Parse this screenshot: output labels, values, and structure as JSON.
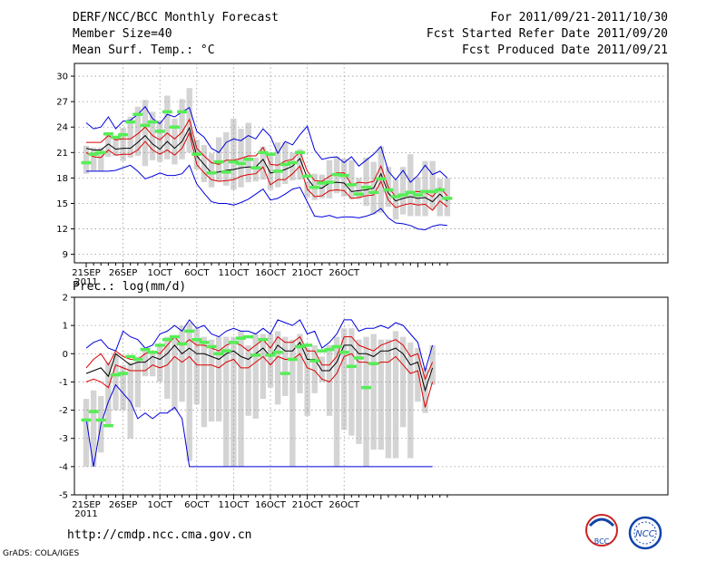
{
  "header": {
    "title": "DERF/NCC/BCC Monthly Forecast",
    "member": "Member Size=40",
    "variable": "Mean Surf. Temp.: °C",
    "period": "For 2011/09/21-2011/10/30",
    "started": "Fcst Started Refer Date 2011/09/20",
    "produced": "Fcst Produced Date 2011/09/21"
  },
  "footer": {
    "url": "http://cmdp.ncc.cma.gov.cn",
    "grads": "GrADS: COLA/IGES",
    "logo_bcc": "BCC",
    "logo_ncc": "NCC"
  },
  "colors": {
    "max": "#0000dd",
    "min": "#0000dd",
    "upper": "#dd0000",
    "lower": "#dd0000",
    "mean": "#000000",
    "obs": "#55ee55",
    "box": "#d4d4d4",
    "grid": "#999999"
  },
  "chart_data": [
    {
      "type": "line",
      "title": "Mean Surf. Temp.: °C",
      "x_tick_labels": [
        "21SEP",
        "26SEP",
        "1OCT",
        "6OCT",
        "11OCT",
        "16OCT",
        "21OCT",
        "26OCT"
      ],
      "x_year_label": "2011",
      "y_ticks": [
        9,
        12,
        15,
        18,
        21,
        24,
        27,
        30
      ],
      "ylim": [
        8,
        31.5
      ],
      "series": [
        {
          "name": "max",
          "values": [
            24.5,
            23.8,
            24,
            25.2,
            23.8,
            24.7,
            24.8,
            25.5,
            26.4,
            25,
            24.4,
            25.5,
            25.2,
            25.8,
            26.3,
            23.5,
            22.8,
            21.5,
            21,
            22.2,
            22.6,
            22.4,
            23,
            22.6,
            23.8,
            22.9,
            20.9,
            22.3,
            21.9,
            23.1,
            24.1,
            21.3,
            20.2,
            20.4,
            20.5,
            19.8,
            20.5,
            19.4,
            20.1,
            20.8,
            21.7,
            18.8,
            17.8,
            18.9,
            17.5,
            18.3,
            19.5,
            18.4,
            18.8,
            18
          ]
        },
        {
          "name": "upper",
          "values": [
            22.2,
            22.2,
            22.2,
            23,
            22.5,
            22.6,
            22.6,
            23.2,
            24,
            23,
            22.5,
            23.3,
            22.6,
            23.4,
            24.9,
            21.5,
            20.6,
            19.8,
            19.6,
            20.1,
            20.1,
            20.3,
            20.6,
            20.6,
            21.6,
            19.6,
            19.5,
            20,
            20.2,
            21.1,
            18.8,
            17.7,
            17.6,
            18.2,
            18.6,
            18.6,
            17.2,
            17.5,
            17.4,
            17.6,
            19.4,
            16.9,
            15.8,
            15.9,
            16.4,
            16.4,
            16.3,
            15.8,
            16.8,
            15.9
          ]
        },
        {
          "name": "mean",
          "values": [
            21.5,
            21.3,
            21.3,
            22,
            21.4,
            21.5,
            21.5,
            22.2,
            23,
            22,
            21.4,
            22.3,
            21.5,
            22.3,
            23.9,
            20.6,
            19.6,
            18.6,
            18.7,
            18.9,
            19,
            19.2,
            19.3,
            19.3,
            20.2,
            18.6,
            18.7,
            19,
            19.4,
            20.3,
            18,
            16.8,
            16.8,
            17.4,
            17.5,
            17.4,
            16.4,
            16.5,
            16.6,
            16.8,
            18.5,
            16.2,
            15.3,
            15.6,
            15.8,
            15.6,
            15.7,
            15.2,
            16.1,
            15.3
          ]
        },
        {
          "name": "lower",
          "values": [
            21,
            20.5,
            20.4,
            21.3,
            20.7,
            20.8,
            20.8,
            21.3,
            22.3,
            21.3,
            20.8,
            21.3,
            20.7,
            21.5,
            23.3,
            19.6,
            18.6,
            17.8,
            17.6,
            17.7,
            17.8,
            18.2,
            18.4,
            18.5,
            19.3,
            17.2,
            17.8,
            17.8,
            18.5,
            19.4,
            16.7,
            15.8,
            15.9,
            16.5,
            16.6,
            16.5,
            15.6,
            15.7,
            15.9,
            16,
            17.6,
            15.4,
            14.5,
            14.8,
            15,
            14.8,
            14.9,
            14.2,
            15.3,
            14.6
          ]
        },
        {
          "name": "min",
          "values": [
            18.8,
            18.8,
            18.8,
            18.8,
            18.9,
            19.2,
            19.5,
            18.8,
            17.9,
            18.2,
            18.6,
            18.3,
            18.3,
            18.5,
            19.5,
            17.3,
            16.2,
            15.2,
            15,
            15,
            14.8,
            15.1,
            15.5,
            16.1,
            16.7,
            15.4,
            15.6,
            16.1,
            16.7,
            16.9,
            15.2,
            13.5,
            13.4,
            13.6,
            13.3,
            13.4,
            13.4,
            13.3,
            13.5,
            13.8,
            14.4,
            13.3,
            12.7,
            12.6,
            12.4,
            12,
            11.9,
            12.3,
            12.5,
            12.4
          ]
        },
        {
          "name": "box_top",
          "values": [
            21.8,
            21.6,
            21.6,
            23.2,
            22.6,
            23.9,
            25.2,
            26.4,
            27.2,
            25.8,
            24.8,
            27.7,
            25,
            27.3,
            28.6,
            22.5,
            21.9,
            20.9,
            22.8,
            23.4,
            25,
            23.8,
            24.5,
            20.4,
            21.7,
            21,
            22.2,
            22.2,
            21,
            21.4,
            17.6,
            18.5,
            18.4,
            20.1,
            20.5,
            20.3,
            20.1,
            18,
            20.4,
            19.9,
            21.7,
            19.3,
            17.8,
            19.3,
            20.8,
            18.1,
            20,
            20,
            17.9,
            18
          ]
        },
        {
          "name": "box_bottom",
          "values": [
            18.5,
            18.8,
            18.8,
            20.5,
            20.6,
            20,
            20.4,
            20.6,
            19.4,
            20.1,
            19.9,
            20.2,
            19.6,
            20.2,
            21,
            19,
            17.5,
            16.9,
            17.6,
            17.1,
            16.6,
            16.9,
            17.5,
            17.6,
            17.8,
            16.6,
            16.9,
            17.3,
            17.7,
            17.8,
            15.7,
            15.4,
            15.6,
            15.6,
            16.2,
            15.8,
            15.5,
            15.5,
            14.7,
            13.7,
            13.9,
            14.6,
            13.1,
            13.7,
            13.5,
            13.5,
            13.5,
            14.3,
            13.5,
            13.5
          ]
        },
        {
          "name": "observed",
          "values": [
            19.8,
            20.8,
            21,
            23.2,
            22.8,
            23.1,
            24.6,
            25.5,
            24.2,
            24.6,
            23.5,
            25.8,
            24,
            25.8,
            null,
            20.8,
            null,
            18.6,
            19.9,
            18.7,
            19.9,
            19.7,
            20.2,
            19.2,
            21,
            20.8,
            18.8,
            19.6,
            19.8,
            21,
            18.2,
            16.9,
            17.4,
            17.5,
            18.4,
            18.3,
            17.2,
            16.1,
            16.9,
            16.3,
            17.9,
            16.6,
            15.8,
            16,
            16.3,
            16,
            16.4,
            16.4,
            16.6,
            15.6
          ]
        }
      ]
    },
    {
      "type": "line",
      "title": "Prec.: log(mm/d)",
      "x_tick_labels": [
        "21SEP",
        "26SEP",
        "1OCT",
        "6OCT",
        "11OCT",
        "16OCT",
        "21OCT",
        "26OCT"
      ],
      "x_year_label": "2011",
      "y_ticks": [
        -5,
        -4,
        -3,
        -2,
        -1,
        0,
        1,
        2
      ],
      "ylim": [
        -5,
        2
      ],
      "series": [
        {
          "name": "max",
          "values": [
            0.2,
            0.4,
            0.5,
            0.2,
            0.1,
            0.8,
            0.6,
            0.5,
            0.2,
            0.3,
            0.7,
            0.8,
            1,
            0.8,
            1.2,
            0.9,
            1,
            0.7,
            0.6,
            0.8,
            0.9,
            0.8,
            0.8,
            0.7,
            0.9,
            0.7,
            1.2,
            1.1,
            1,
            1.2,
            0.7,
            0.8,
            0.2,
            0.4,
            0.7,
            1.2,
            1.2,
            0.8,
            0.9,
            0.9,
            1,
            0.9,
            1.1,
            1,
            0.7,
            0.4,
            -0.6,
            0.3
          ]
        },
        {
          "name": "upper",
          "values": [
            -0.5,
            -0.2,
            0,
            -0.4,
            0.1,
            -0.1,
            -0.2,
            -0.2,
            0,
            0.1,
            0,
            0.3,
            0.6,
            0.3,
            0.5,
            0.3,
            0.3,
            0.2,
            0.1,
            0.3,
            0.4,
            0.3,
            0.1,
            0.3,
            0.5,
            0.2,
            0.6,
            0.4,
            0.4,
            0.6,
            0.1,
            0.1,
            -0.4,
            -0.4,
            -0.1,
            0.6,
            0.6,
            0.3,
            0.2,
            0.1,
            0.3,
            0.4,
            0.5,
            0.3,
            -0.1,
            0,
            -0.9,
            -0.3
          ]
        },
        {
          "name": "mean",
          "values": [
            -0.7,
            -0.6,
            -0.5,
            -0.8,
            0,
            -0.2,
            -0.4,
            -0.3,
            -0.3,
            -0.1,
            -0.2,
            0,
            0.3,
            0,
            0.2,
            0,
            0,
            -0.1,
            -0.2,
            0,
            0.1,
            -0.1,
            -0.2,
            0,
            0.2,
            -0.1,
            0.3,
            0.1,
            0.1,
            0.4,
            -0.2,
            -0.2,
            -0.6,
            -0.6,
            -0.3,
            0.3,
            0.3,
            0,
            0,
            -0.1,
            0.1,
            0.1,
            0.2,
            0,
            -0.4,
            -0.3,
            -1.3,
            -0.5
          ]
        },
        {
          "name": "lower",
          "values": [
            -1,
            -0.9,
            -1,
            -1.2,
            -0.4,
            -0.5,
            -0.6,
            -0.6,
            -0.6,
            -0.4,
            -0.5,
            -0.4,
            -0.1,
            -0.3,
            -0.1,
            -0.4,
            -0.4,
            -0.4,
            -0.5,
            -0.3,
            -0.2,
            -0.5,
            -0.5,
            -0.3,
            -0.1,
            -0.4,
            -0.1,
            -0.2,
            -0.2,
            0,
            -0.5,
            -0.6,
            -0.9,
            -1,
            -0.7,
            -0.1,
            0,
            -0.3,
            -0.3,
            -0.4,
            -0.3,
            -0.3,
            -0.1,
            -0.4,
            -0.7,
            -0.6,
            -1.9,
            -1
          ]
        },
        {
          "name": "min",
          "values": [
            -2.3,
            -4,
            -2.5,
            -1.7,
            -1.1,
            -1.4,
            -1.7,
            -2.3,
            -2.1,
            -2.3,
            -2.1,
            -2.1,
            -1.9,
            -2.3,
            -4,
            -4,
            -4,
            -4,
            -4,
            -4,
            -4,
            -4,
            -4,
            -4,
            -4,
            -4,
            -4,
            -4,
            -4,
            -4,
            -4,
            -4,
            -4,
            -4,
            -4,
            -4,
            -4,
            -4,
            -4,
            -4,
            -4,
            -4,
            -4,
            -4,
            -4,
            -4,
            -4,
            -4
          ]
        },
        {
          "name": "box_top",
          "values": [
            -1.6,
            -1.3,
            -1.5,
            -0.3,
            0,
            -0.4,
            -0.3,
            -0.1,
            0.2,
            0.1,
            0.3,
            0.6,
            0.6,
            1,
            1.1,
            0.9,
            0.6,
            0.5,
            0.6,
            0.6,
            0.6,
            0.8,
            0.3,
            0.7,
            0.7,
            0.7,
            0.8,
            0.6,
            0.5,
            0.7,
            0.2,
            0.3,
            -0.1,
            0.3,
            0.6,
            0.9,
            0.9,
            0.5,
            0.6,
            0.7,
            0.5,
            0.5,
            0.8,
            0.6,
            0.4,
            0.2,
            -0.5,
            0.3
          ]
        },
        {
          "name": "box_bottom",
          "values": [
            -4,
            -4,
            -3.5,
            -2.6,
            -2,
            -2,
            -3,
            -1.9,
            -0.8,
            -0.8,
            -1,
            -1.6,
            -2,
            -1.7,
            -3.8,
            -1.8,
            -2.6,
            -2.4,
            -2.4,
            -4,
            -4,
            -4,
            -2.2,
            -2.3,
            -1.6,
            -1.2,
            -1.8,
            -1.5,
            -4,
            -1.4,
            -2.2,
            -1.4,
            -1,
            -2.2,
            -4,
            -2.7,
            -2.9,
            -3.2,
            -4,
            -3.4,
            -3.4,
            -3.7,
            -3.7,
            -2.6,
            -3.7,
            -1.7,
            -2.1,
            -1.1
          ]
        },
        {
          "name": "observed",
          "values": [
            -2.35,
            -2.05,
            -2.35,
            -2.55,
            -0.75,
            -0.7,
            -0.1,
            -0.2,
            0.15,
            0.05,
            0.3,
            0.5,
            0.6,
            0.35,
            0.8,
            0.5,
            0.4,
            0.25,
            0,
            0.1,
            0.4,
            0.55,
            0.6,
            -0.05,
            0.5,
            -0.05,
            0.05,
            -0.7,
            -0.2,
            0.25,
            0.3,
            -0.25,
            0.1,
            0.15,
            0.25,
            0.05,
            -0.45,
            -0.15,
            -1.2,
            -0.35,
            null,
            null,
            null,
            null,
            null,
            null,
            null,
            null
          ]
        }
      ]
    }
  ]
}
